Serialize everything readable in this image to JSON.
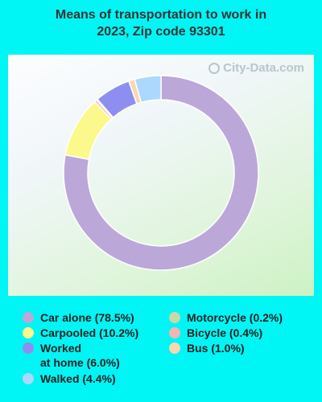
{
  "title_line1": "Means of transportation to work in",
  "title_line2": "2023, Zip code 93301",
  "watermark": "City-Data.com",
  "chart_data": {
    "type": "pie",
    "style": "donut",
    "series": [
      {
        "name": "Car alone",
        "label": "Car alone (78.5%)",
        "value": 78.5,
        "color": "#bca7d9"
      },
      {
        "name": "Carpooled",
        "label": "Carpooled (10.2%)",
        "value": 10.2,
        "color": "#fbf98c"
      },
      {
        "name": "Motorcycle",
        "label": "Motorcycle (0.2%)",
        "value": 0.2,
        "color": "#c8d8a8"
      },
      {
        "name": "Bicycle",
        "label": "Bicycle (0.4%)",
        "value": 0.4,
        "color": "#f2b4b4"
      },
      {
        "name": "Worked at home",
        "label": "Worked at home (6.0%)",
        "label_line1": "Worked",
        "label_line2": "at home (6.0%)",
        "value": 6.0,
        "color": "#8e8ef0"
      },
      {
        "name": "Bus",
        "label": "Bus (1.0%)",
        "value": 1.0,
        "color": "#f7d9ae"
      },
      {
        "name": "Walked",
        "label": "Walked (4.4%)",
        "value": 4.4,
        "color": "#acd8fd"
      }
    ],
    "legend_placement": "bottom"
  }
}
